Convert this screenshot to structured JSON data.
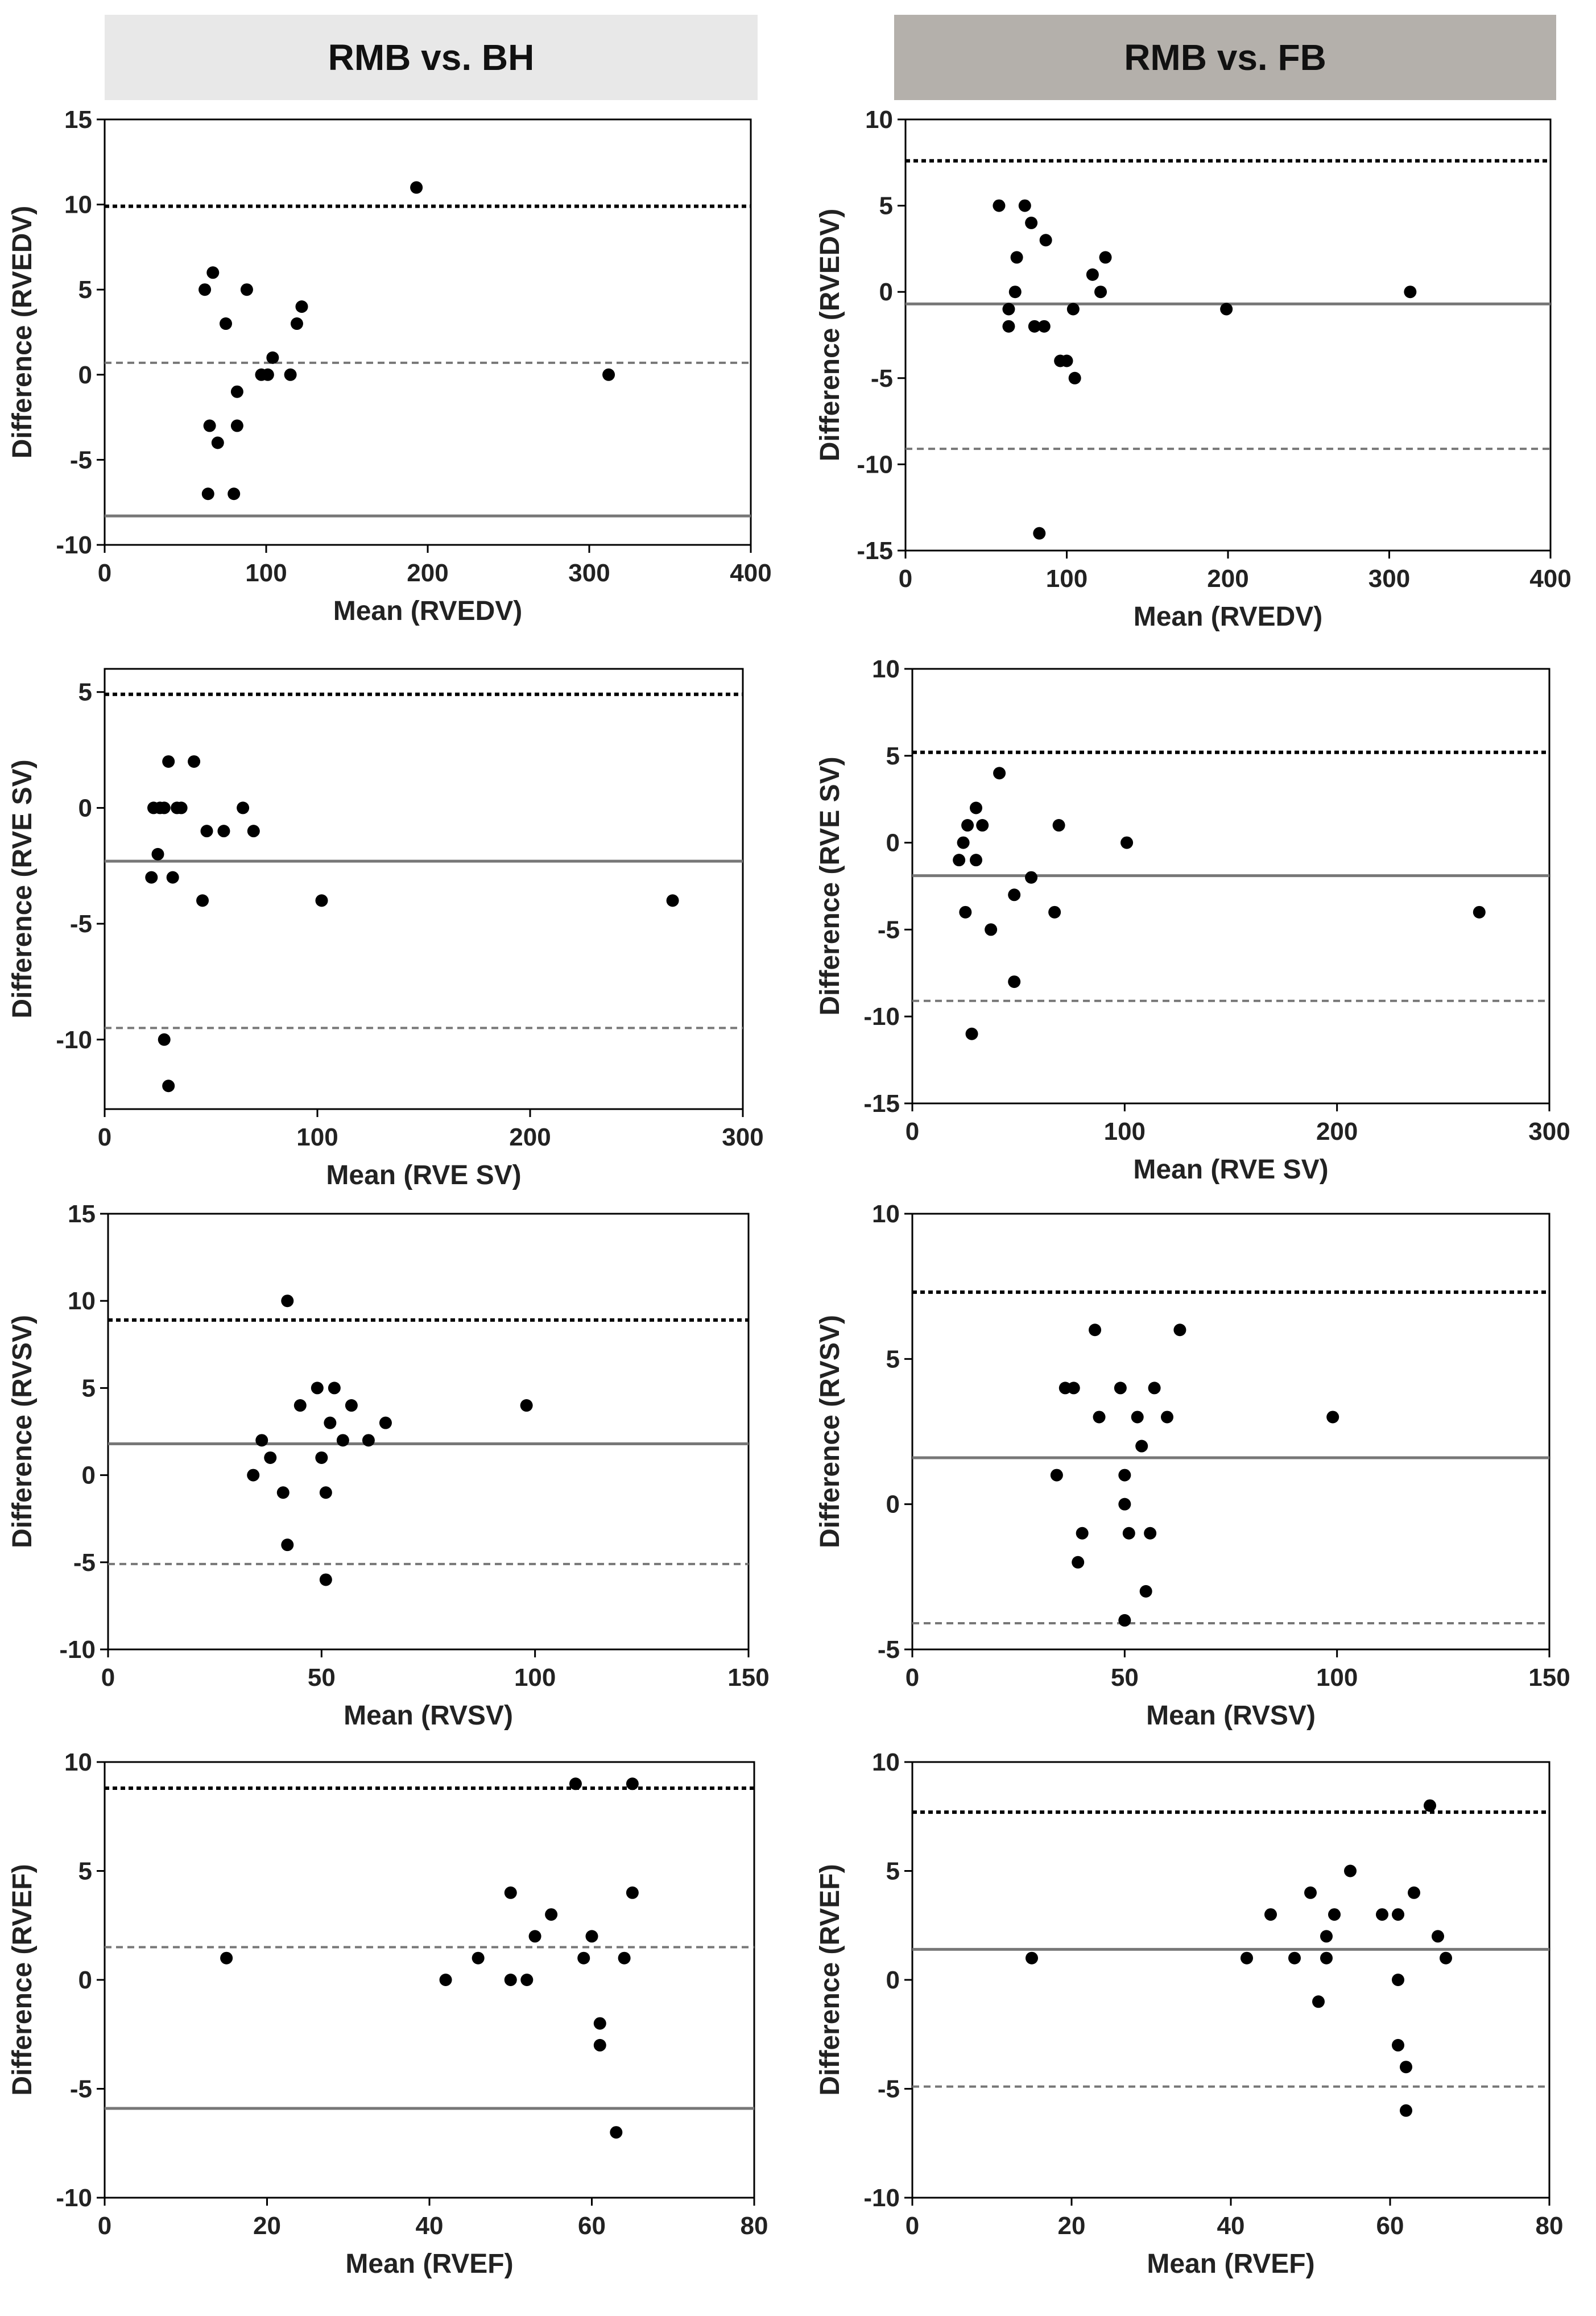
{
  "headers": {
    "left": "RMB vs. BH",
    "right": "RMB vs. FB",
    "left_color": "#e8e8e8",
    "right_color": "#b4b0ab"
  },
  "chart_data": [
    {
      "id": "bh-rvedv",
      "type": "scatter",
      "title": "RMB vs. BH",
      "xlabel": "Mean (RVEDV)",
      "ylabel": "Difference (RVEDV)",
      "xlim": [
        0,
        400
      ],
      "ylim": [
        -10,
        15
      ],
      "xticks": [
        0,
        100,
        200,
        300,
        400
      ],
      "yticks": [
        -10,
        -5,
        0,
        5,
        10,
        15
      ],
      "points": [
        [
          62,
          5
        ],
        [
          67,
          6
        ],
        [
          65,
          -3
        ],
        [
          64,
          -7
        ],
        [
          70,
          -4
        ],
        [
          75,
          3
        ],
        [
          80,
          -7
        ],
        [
          82,
          -1
        ],
        [
          82,
          -3
        ],
        [
          88,
          5
        ],
        [
          97,
          0
        ],
        [
          101,
          0
        ],
        [
          104,
          1
        ],
        [
          115,
          0
        ],
        [
          119,
          3
        ],
        [
          122,
          4
        ],
        [
          193,
          11
        ],
        [
          312,
          0
        ]
      ],
      "lines": [
        {
          "name": "upper limit",
          "y": 9.9,
          "style": "dotted",
          "color": "#000000"
        },
        {
          "name": "mean difference",
          "y": 0.7,
          "style": "dashed",
          "color": "#777777"
        },
        {
          "name": "lower limit",
          "y": -8.3,
          "style": "solid",
          "color": "#777777"
        }
      ]
    },
    {
      "id": "fb-rvedv",
      "type": "scatter",
      "title": "RMB vs. FB",
      "xlabel": "Mean (RVEDV)",
      "ylabel": "Difference (RVEDV)",
      "xlim": [
        0,
        400
      ],
      "ylim": [
        -15,
        10
      ],
      "xticks": [
        0,
        100,
        200,
        300,
        400
      ],
      "yticks": [
        -15,
        -10,
        -5,
        0,
        5,
        10
      ],
      "points": [
        [
          58,
          5
        ],
        [
          64,
          -1
        ],
        [
          64,
          -2
        ],
        [
          68,
          0
        ],
        [
          69,
          2
        ],
        [
          74,
          5
        ],
        [
          78,
          4
        ],
        [
          80,
          -2
        ],
        [
          83,
          -14
        ],
        [
          86,
          -2
        ],
        [
          87,
          3
        ],
        [
          96,
          -4
        ],
        [
          100,
          -4
        ],
        [
          104,
          -1
        ],
        [
          105,
          -5
        ],
        [
          116,
          1
        ],
        [
          121,
          0
        ],
        [
          124,
          2
        ],
        [
          199,
          -1
        ],
        [
          313,
          0
        ]
      ],
      "lines": [
        {
          "name": "upper limit",
          "y": 7.6,
          "style": "dotted",
          "color": "#000000"
        },
        {
          "name": "mean difference",
          "y": -0.7,
          "style": "solid",
          "color": "#777777"
        },
        {
          "name": "lower limit",
          "y": -9.1,
          "style": "dashed",
          "color": "#777777"
        }
      ]
    },
    {
      "id": "bh-rvesv",
      "type": "scatter",
      "title": "RMB vs. BH",
      "xlabel": "Mean (RVE SV)",
      "ylabel": "Difference (RVE SV)",
      "xlim": [
        0,
        300
      ],
      "ylim": [
        -13,
        6
      ],
      "xticks": [
        0,
        100,
        200,
        300
      ],
      "yticks": [
        -10,
        -5,
        0,
        5
      ],
      "points": [
        [
          22,
          -3
        ],
        [
          23,
          0
        ],
        [
          25,
          -2
        ],
        [
          26,
          0
        ],
        [
          28,
          0
        ],
        [
          28,
          -10
        ],
        [
          30,
          -12
        ],
        [
          30,
          2
        ],
        [
          32,
          -3
        ],
        [
          34,
          0
        ],
        [
          36,
          0
        ],
        [
          42,
          2
        ],
        [
          46,
          -4
        ],
        [
          48,
          -1
        ],
        [
          56,
          -1
        ],
        [
          65,
          0
        ],
        [
          70,
          -1
        ],
        [
          102,
          -4
        ],
        [
          267,
          -4
        ]
      ],
      "lines": [
        {
          "name": "upper limit",
          "y": 4.9,
          "style": "dotted",
          "color": "#000000"
        },
        {
          "name": "mean difference",
          "y": -2.3,
          "style": "solid",
          "color": "#777777"
        },
        {
          "name": "lower limit",
          "y": -9.5,
          "style": "dashed",
          "color": "#777777"
        }
      ]
    },
    {
      "id": "fb-rvesv",
      "type": "scatter",
      "title": "RMB vs. FB",
      "xlabel": "Mean (RVE SV)",
      "ylabel": "Difference (RVE SV)",
      "xlim": [
        0,
        300
      ],
      "ylim": [
        -15,
        10
      ],
      "xticks": [
        0,
        100,
        200,
        300
      ],
      "yticks": [
        -15,
        -10,
        -5,
        0,
        5,
        10
      ],
      "points": [
        [
          22,
          -1
        ],
        [
          24,
          0
        ],
        [
          25,
          -4
        ],
        [
          26,
          1
        ],
        [
          28,
          -11
        ],
        [
          30,
          2
        ],
        [
          30,
          -1
        ],
        [
          33,
          1
        ],
        [
          37,
          -5
        ],
        [
          41,
          4
        ],
        [
          48,
          -3
        ],
        [
          48,
          -8
        ],
        [
          56,
          -2
        ],
        [
          67,
          -4
        ],
        [
          69,
          1
        ],
        [
          101,
          0
        ],
        [
          267,
          -4
        ]
      ],
      "lines": [
        {
          "name": "upper limit",
          "y": 5.2,
          "style": "dotted",
          "color": "#000000"
        },
        {
          "name": "mean difference",
          "y": -1.9,
          "style": "solid",
          "color": "#777777"
        },
        {
          "name": "lower limit",
          "y": -9.1,
          "style": "dashed",
          "color": "#777777"
        }
      ]
    },
    {
      "id": "bh-rvsv",
      "type": "scatter",
      "title": "RMB vs. BH",
      "xlabel": "Mean (RVSV)",
      "ylabel": "Difference (RVSV)",
      "xlim": [
        0,
        150
      ],
      "ylim": [
        -10,
        15
      ],
      "xticks": [
        0,
        50,
        100,
        150
      ],
      "yticks": [
        -10,
        -5,
        0,
        5,
        10,
        15
      ],
      "points": [
        [
          34,
          0
        ],
        [
          36,
          2
        ],
        [
          38,
          1
        ],
        [
          41,
          -1
        ],
        [
          42,
          10
        ],
        [
          42,
          -4
        ],
        [
          45,
          4
        ],
        [
          49,
          5
        ],
        [
          50,
          1
        ],
        [
          51,
          -1
        ],
        [
          51,
          -6
        ],
        [
          52,
          3
        ],
        [
          53,
          5
        ],
        [
          55,
          2
        ],
        [
          57,
          4
        ],
        [
          61,
          2
        ],
        [
          65,
          3
        ],
        [
          98,
          4
        ]
      ],
      "lines": [
        {
          "name": "upper limit",
          "y": 8.9,
          "style": "dotted",
          "color": "#000000"
        },
        {
          "name": "mean difference",
          "y": 1.8,
          "style": "solid",
          "color": "#777777"
        },
        {
          "name": "lower limit",
          "y": -5.1,
          "style": "dashed",
          "color": "#777777"
        }
      ]
    },
    {
      "id": "fb-rvsv",
      "type": "scatter",
      "title": "RMB vs. FB",
      "xlabel": "Mean (RVSV)",
      "ylabel": "Difference (RVSV)",
      "xlim": [
        0,
        150
      ],
      "ylim": [
        -5,
        10
      ],
      "xticks": [
        0,
        50,
        100,
        150
      ],
      "yticks": [
        -5,
        0,
        5,
        10
      ],
      "points": [
        [
          34,
          1
        ],
        [
          36,
          4
        ],
        [
          38,
          4
        ],
        [
          39,
          -2
        ],
        [
          40,
          -1
        ],
        [
          43,
          6
        ],
        [
          44,
          3
        ],
        [
          49,
          4
        ],
        [
          50,
          1
        ],
        [
          50,
          0
        ],
        [
          51,
          -1
        ],
        [
          50,
          -4
        ],
        [
          53,
          3
        ],
        [
          54,
          2
        ],
        [
          55,
          -3
        ],
        [
          56,
          -1
        ],
        [
          57,
          4
        ],
        [
          60,
          3
        ],
        [
          63,
          6
        ],
        [
          99,
          3
        ]
      ],
      "lines": [
        {
          "name": "upper limit",
          "y": 7.3,
          "style": "dotted",
          "color": "#000000"
        },
        {
          "name": "mean difference",
          "y": 1.6,
          "style": "solid",
          "color": "#777777"
        },
        {
          "name": "lower limit",
          "y": -4.1,
          "style": "dashed",
          "color": "#777777"
        }
      ]
    },
    {
      "id": "bh-rvef",
      "type": "scatter",
      "title": "RMB vs. BH",
      "xlabel": "Mean (RVEF)",
      "ylabel": "Difference (RVEF)",
      "xlim": [
        0,
        80
      ],
      "ylim": [
        -10,
        10
      ],
      "xticks": [
        0,
        20,
        40,
        60,
        80
      ],
      "yticks": [
        -10,
        -5,
        0,
        5,
        10
      ],
      "points": [
        [
          15,
          1
        ],
        [
          42,
          0
        ],
        [
          46,
          1
        ],
        [
          50,
          4
        ],
        [
          50,
          0
        ],
        [
          52,
          0
        ],
        [
          53,
          2
        ],
        [
          55,
          3
        ],
        [
          58,
          9
        ],
        [
          59,
          1
        ],
        [
          60,
          2
        ],
        [
          61,
          -3
        ],
        [
          61,
          -2
        ],
        [
          63,
          -7
        ],
        [
          64,
          1
        ],
        [
          65,
          9
        ],
        [
          65,
          4
        ]
      ],
      "lines": [
        {
          "name": "upper limit",
          "y": 8.8,
          "style": "dotted",
          "color": "#000000"
        },
        {
          "name": "mean difference",
          "y": 1.5,
          "style": "dashed",
          "color": "#777777"
        },
        {
          "name": "lower limit",
          "y": -5.9,
          "style": "solid",
          "color": "#777777"
        }
      ]
    },
    {
      "id": "fb-rvef",
      "type": "scatter",
      "title": "RMB vs. FB",
      "xlabel": "Mean (RVEF)",
      "ylabel": "Difference (RVEF)",
      "xlim": [
        0,
        80
      ],
      "ylim": [
        -10,
        10
      ],
      "xticks": [
        0,
        20,
        40,
        60,
        80
      ],
      "yticks": [
        -10,
        -5,
        0,
        5,
        10
      ],
      "points": [
        [
          15,
          1
        ],
        [
          42,
          1
        ],
        [
          45,
          3
        ],
        [
          48,
          1
        ],
        [
          50,
          4
        ],
        [
          51,
          -1
        ],
        [
          52,
          1
        ],
        [
          52,
          2
        ],
        [
          53,
          3
        ],
        [
          55,
          5
        ],
        [
          59,
          3
        ],
        [
          61,
          3
        ],
        [
          61,
          -3
        ],
        [
          61,
          0
        ],
        [
          62,
          -4
        ],
        [
          62,
          -6
        ],
        [
          63,
          4
        ],
        [
          65,
          8
        ],
        [
          66,
          2
        ],
        [
          67,
          1
        ]
      ],
      "lines": [
        {
          "name": "upper limit",
          "y": 7.7,
          "style": "dotted",
          "color": "#000000"
        },
        {
          "name": "mean difference",
          "y": 1.4,
          "style": "solid",
          "color": "#777777"
        },
        {
          "name": "lower limit",
          "y": -4.9,
          "style": "dashed",
          "color": "#777777"
        }
      ]
    }
  ]
}
